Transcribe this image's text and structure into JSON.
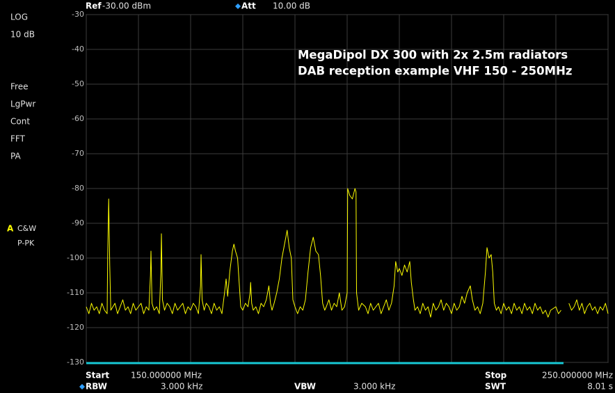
{
  "status_bar": {
    "ref_label": "Ref",
    "ref_value": "-30.00 dBm",
    "att_label": "Att",
    "att_value": "10.00 dB"
  },
  "side_panel": {
    "scale": "LOG",
    "division": "10 dB",
    "items": [
      "Free",
      "LgPwr",
      "Cont",
      "FFT",
      "PA"
    ],
    "trace": "A",
    "trace_mode": "C&W",
    "detector": "P-PK"
  },
  "footer": {
    "start_label": "Start",
    "start_value": "150.000000 MHz",
    "stop_label": "Stop",
    "stop_value": "250.000000 MHz",
    "rbw_label": "RBW",
    "rbw_value": "3.000 kHz",
    "vbw_label": "VBW",
    "vbw_value": "3.000 kHz",
    "swt_label": "SWT",
    "swt_value": "8.01 s"
  },
  "chart_data": {
    "type": "line",
    "title": "MegaDipol DX 300 with 2x 2.5m radiators",
    "subtitle": "DAB reception example VHF 150 - 250MHz",
    "xlim": [
      150,
      250
    ],
    "xticks": [
      150,
      160,
      170,
      180,
      190,
      200,
      210,
      220,
      230,
      240,
      250
    ],
    "ylim": [
      -130,
      -30
    ],
    "yticks": [
      -30,
      -40,
      -50,
      -60,
      -70,
      -80,
      -90,
      -100,
      -110,
      -120,
      -130
    ],
    "grid": true,
    "x": [
      150,
      150.5,
      151,
      151.5,
      152,
      152.5,
      153,
      153.5,
      154,
      154.1,
      154.3,
      154.5,
      154.7,
      155.5,
      156,
      156.5,
      157,
      157.5,
      158,
      158.5,
      159,
      159.5,
      160,
      160.5,
      161,
      161.5,
      162,
      162.3,
      162.4,
      162.6,
      163,
      163.5,
      164,
      164.3,
      164.4,
      164.6,
      165,
      165.5,
      166,
      166.5,
      167,
      167.5,
      168,
      168.5,
      169,
      169.5,
      170,
      170.5,
      171,
      171.5,
      171.9,
      172,
      172.2,
      172.6,
      173,
      173.5,
      174,
      174.5,
      175,
      175.5,
      176,
      176.5,
      176.8,
      177.1,
      177.5,
      178,
      178.3,
      178.6,
      179,
      179.3,
      179.6,
      180,
      180.5,
      181,
      181.4,
      181.5,
      181.7,
      182,
      182.5,
      183,
      183.5,
      184,
      184.5,
      185,
      185.3,
      185.6,
      186,
      186.5,
      187,
      187.5,
      188,
      188.5,
      188.9,
      189.3,
      189.6,
      190,
      190.5,
      191,
      191.5,
      192,
      192.5,
      193,
      193.5,
      194,
      194.5,
      194.9,
      195.3,
      195.7,
      196,
      196.5,
      197,
      197.5,
      198,
      198.5,
      199,
      199.5,
      200,
      200.1,
      200.5,
      201,
      201.5,
      201.7,
      201.8,
      202.2,
      202.8,
      203.5,
      204,
      204.5,
      205,
      205.5,
      206,
      206.5,
      207,
      207.5,
      208,
      208.5,
      209,
      209.3,
      209.7,
      210,
      210.5,
      211,
      211.5,
      212,
      212.3,
      212.7,
      213,
      213.5,
      214,
      214.5,
      215,
      215.5,
      216,
      216.5,
      217,
      217.5,
      218,
      218.5,
      219,
      219.5,
      220,
      220.5,
      221,
      221.5,
      222,
      222.5,
      223,
      223.6,
      224,
      224.5,
      225,
      225.5,
      226,
      226.5,
      226.8,
      227.2,
      227.6,
      227.9,
      228.2,
      228.6,
      229,
      229.5,
      230,
      230.5,
      231,
      231.5,
      232,
      232.5,
      233,
      233.5,
      234,
      234.5,
      235,
      235.5,
      236,
      236.5,
      237,
      237.5,
      238,
      238.5,
      239,
      240,
      240.5,
      241,
      241.8,
      242.5,
      243,
      243.5,
      244,
      244.5,
      245,
      245.5,
      246,
      246.5,
      247,
      247.5,
      248,
      248.5,
      249,
      249.5,
      250
    ],
    "series": [
      {
        "color": "#ffff00",
        "values": [
          -114,
          -116,
          -113,
          -115,
          -114,
          -116,
          -113,
          -115,
          -116,
          -100,
          -83,
          -102,
          -115,
          -113,
          -116,
          -114,
          -112,
          -115,
          -114,
          -116,
          -113,
          -115,
          -114,
          -113,
          -116,
          -114,
          -115,
          -105,
          -98,
          -113,
          -115,
          -114,
          -116,
          -104,
          -93,
          -112,
          -115,
          -113,
          -114,
          -116,
          -113,
          -115,
          -114,
          -113,
          -116,
          -114,
          -115,
          -113,
          -114,
          -116,
          -108,
          -99,
          -112,
          -115,
          -113,
          -114,
          -116,
          -113,
          -115,
          -114,
          -116,
          -110,
          -106,
          -111,
          -104,
          -98,
          -96,
          -98,
          -100,
          -107,
          -114,
          -115,
          -113,
          -114,
          -110,
          -107,
          -113,
          -115,
          -114,
          -116,
          -113,
          -114,
          -112,
          -108,
          -113,
          -115,
          -113,
          -110,
          -106,
          -100,
          -96,
          -92,
          -97,
          -100,
          -112,
          -114,
          -116,
          -114,
          -115,
          -112,
          -104,
          -97,
          -94,
          -98,
          -99,
          -105,
          -113,
          -115,
          -114,
          -112,
          -115,
          -113,
          -114,
          -110,
          -115,
          -114,
          -110,
          -80,
          -82,
          -83,
          -80,
          -81,
          -110,
          -115,
          -113,
          -114,
          -116,
          -113,
          -115,
          -114,
          -113,
          -116,
          -114,
          -112,
          -115,
          -113,
          -108,
          -101,
          -104,
          -103,
          -105,
          -102,
          -104,
          -101,
          -107,
          -112,
          -115,
          -114,
          -116,
          -113,
          -115,
          -114,
          -117,
          -113,
          -115,
          -114,
          -112,
          -115,
          -113,
          -114,
          -116,
          -113,
          -115,
          -114,
          -111,
          -113,
          -110,
          -108,
          -112,
          -115,
          -114,
          -116,
          -113,
          -104,
          -97,
          -100,
          -99,
          -104,
          -113,
          -115,
          -114,
          -116,
          -113,
          -115,
          -114,
          -116,
          -113,
          -115,
          -114,
          -116,
          -113,
          -115,
          -114,
          -116,
          -113,
          -115,
          -114,
          -116,
          -115,
          -117,
          -115,
          -114,
          -116,
          -115,
          null,
          -113,
          -115,
          -114,
          -112,
          -115,
          -113,
          -116,
          -114,
          -113,
          -115,
          -114,
          -116,
          -114,
          -115,
          -113,
          -116
        ]
      }
    ]
  }
}
